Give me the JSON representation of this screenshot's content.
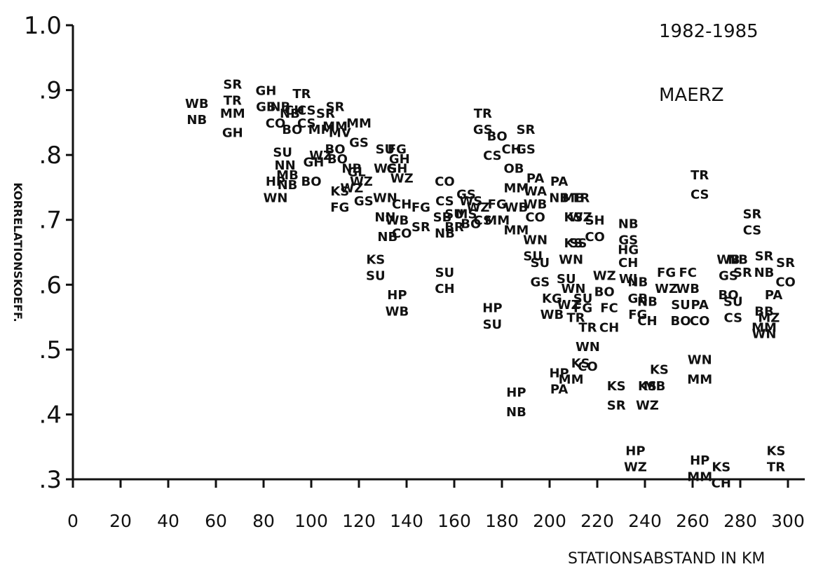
{
  "chart_data": {
    "type": "scatter",
    "title": "",
    "annotations": [
      "1982-1985",
      "MAERZ"
    ],
    "xlabel": "STATIONSABSTAND IN KM",
    "ylabel": "KORRELATIONSKOEFF.",
    "xlim": [
      0,
      300
    ],
    "ylim": [
      0.3,
      1.0
    ],
    "xticks": [
      0,
      20,
      40,
      60,
      80,
      100,
      120,
      140,
      160,
      180,
      200,
      220,
      240,
      260,
      280,
      300
    ],
    "yticks": [
      {
        "value": 0.3,
        "label": ".3"
      },
      {
        "value": 0.4,
        "label": ".4"
      },
      {
        "value": 0.5,
        "label": ".5"
      },
      {
        "value": 0.6,
        "label": ".6"
      },
      {
        "value": 0.7,
        "label": ".7"
      },
      {
        "value": 0.8,
        "label": ".8"
      },
      {
        "value": 0.9,
        "label": ".9"
      },
      {
        "value": 1.0,
        "label": "1.0"
      }
    ],
    "grid": false,
    "points": [
      {
        "x": 52,
        "y": 0.88,
        "label": "WB"
      },
      {
        "x": 52,
        "y": 0.855,
        "label": "NB"
      },
      {
        "x": 67,
        "y": 0.91,
        "label": "SR"
      },
      {
        "x": 67,
        "y": 0.885,
        "label": "TR"
      },
      {
        "x": 67,
        "y": 0.865,
        "label": "MM"
      },
      {
        "x": 67,
        "y": 0.835,
        "label": "GH"
      },
      {
        "x": 81,
        "y": 0.9,
        "label": "GH"
      },
      {
        "x": 81,
        "y": 0.875,
        "label": "GB"
      },
      {
        "x": 85,
        "y": 0.85,
        "label": "CO"
      },
      {
        "x": 87,
        "y": 0.875,
        "label": "NB"
      },
      {
        "x": 91,
        "y": 0.865,
        "label": "NB"
      },
      {
        "x": 92,
        "y": 0.84,
        "label": "BO"
      },
      {
        "x": 93,
        "y": 0.87,
        "label": "CH"
      },
      {
        "x": 96,
        "y": 0.895,
        "label": "TR"
      },
      {
        "x": 98,
        "y": 0.87,
        "label": "CS"
      },
      {
        "x": 98,
        "y": 0.85,
        "label": "CS"
      },
      {
        "x": 104,
        "y": 0.84,
        "label": "MM"
      },
      {
        "x": 106,
        "y": 0.865,
        "label": "SR"
      },
      {
        "x": 110,
        "y": 0.875,
        "label": "SR"
      },
      {
        "x": 110,
        "y": 0.845,
        "label": "MM"
      },
      {
        "x": 112,
        "y": 0.835,
        "label": "MV"
      },
      {
        "x": 110,
        "y": 0.81,
        "label": "BO"
      },
      {
        "x": 111,
        "y": 0.795,
        "label": "BO"
      },
      {
        "x": 120,
        "y": 0.85,
        "label": "MM"
      },
      {
        "x": 120,
        "y": 0.82,
        "label": "GS"
      },
      {
        "x": 88,
        "y": 0.805,
        "label": "SU"
      },
      {
        "x": 89,
        "y": 0.785,
        "label": "NN"
      },
      {
        "x": 90,
        "y": 0.77,
        "label": "MB"
      },
      {
        "x": 90,
        "y": 0.755,
        "label": "NB"
      },
      {
        "x": 85,
        "y": 0.76,
        "label": "HP"
      },
      {
        "x": 85,
        "y": 0.735,
        "label": "WN"
      },
      {
        "x": 101,
        "y": 0.79,
        "label": "GH"
      },
      {
        "x": 104,
        "y": 0.8,
        "label": "WZ"
      },
      {
        "x": 100,
        "y": 0.76,
        "label": "BO"
      },
      {
        "x": 112,
        "y": 0.745,
        "label": "KS"
      },
      {
        "x": 112,
        "y": 0.72,
        "label": "FG"
      },
      {
        "x": 117,
        "y": 0.78,
        "label": "NB"
      },
      {
        "x": 119,
        "y": 0.775,
        "label": "GL"
      },
      {
        "x": 121,
        "y": 0.76,
        "label": "WZ"
      },
      {
        "x": 117,
        "y": 0.75,
        "label": "WZ"
      },
      {
        "x": 122,
        "y": 0.73,
        "label": "GS"
      },
      {
        "x": 131,
        "y": 0.81,
        "label": "SU"
      },
      {
        "x": 136,
        "y": 0.81,
        "label": "FG"
      },
      {
        "x": 137,
        "y": 0.795,
        "label": "GH"
      },
      {
        "x": 131,
        "y": 0.78,
        "label": "WS"
      },
      {
        "x": 136,
        "y": 0.78,
        "label": "GH"
      },
      {
        "x": 138,
        "y": 0.765,
        "label": "WZ"
      },
      {
        "x": 131,
        "y": 0.735,
        "label": "WN"
      },
      {
        "x": 131,
        "y": 0.705,
        "label": "NN"
      },
      {
        "x": 136,
        "y": 0.7,
        "label": "WB"
      },
      {
        "x": 132,
        "y": 0.675,
        "label": "NB"
      },
      {
        "x": 138,
        "y": 0.725,
        "label": "CH"
      },
      {
        "x": 138,
        "y": 0.68,
        "label": "CO"
      },
      {
        "x": 146,
        "y": 0.72,
        "label": "FG"
      },
      {
        "x": 146,
        "y": 0.69,
        "label": "SR"
      },
      {
        "x": 127,
        "y": 0.64,
        "label": "KS"
      },
      {
        "x": 127,
        "y": 0.615,
        "label": "SU"
      },
      {
        "x": 136,
        "y": 0.585,
        "label": "HP"
      },
      {
        "x": 136,
        "y": 0.56,
        "label": "WB"
      },
      {
        "x": 156,
        "y": 0.76,
        "label": "CO"
      },
      {
        "x": 156,
        "y": 0.73,
        "label": "CS"
      },
      {
        "x": 155,
        "y": 0.705,
        "label": "SB"
      },
      {
        "x": 160,
        "y": 0.71,
        "label": "SU"
      },
      {
        "x": 156,
        "y": 0.68,
        "label": "NB"
      },
      {
        "x": 160,
        "y": 0.69,
        "label": "BR"
      },
      {
        "x": 165,
        "y": 0.74,
        "label": "GS"
      },
      {
        "x": 167,
        "y": 0.73,
        "label": "WS"
      },
      {
        "x": 165,
        "y": 0.71,
        "label": "MS"
      },
      {
        "x": 167,
        "y": 0.695,
        "label": "BO"
      },
      {
        "x": 170,
        "y": 0.72,
        "label": "WZ"
      },
      {
        "x": 172,
        "y": 0.7,
        "label": "CS"
      },
      {
        "x": 178,
        "y": 0.725,
        "label": "FG"
      },
      {
        "x": 178,
        "y": 0.7,
        "label": "MM"
      },
      {
        "x": 156,
        "y": 0.62,
        "label": "SU"
      },
      {
        "x": 156,
        "y": 0.595,
        "label": "CH"
      },
      {
        "x": 176,
        "y": 0.565,
        "label": "HP"
      },
      {
        "x": 176,
        "y": 0.54,
        "label": "SU"
      },
      {
        "x": 172,
        "y": 0.865,
        "label": "TR"
      },
      {
        "x": 172,
        "y": 0.84,
        "label": "GS"
      },
      {
        "x": 178,
        "y": 0.83,
        "label": "BO"
      },
      {
        "x": 176,
        "y": 0.8,
        "label": "CS"
      },
      {
        "x": 184,
        "y": 0.81,
        "label": "CH"
      },
      {
        "x": 185,
        "y": 0.78,
        "label": "OB"
      },
      {
        "x": 186,
        "y": 0.75,
        "label": "MM"
      },
      {
        "x": 186,
        "y": 0.72,
        "label": "WB"
      },
      {
        "x": 186,
        "y": 0.685,
        "label": "MM"
      },
      {
        "x": 190,
        "y": 0.84,
        "label": "SR"
      },
      {
        "x": 190,
        "y": 0.81,
        "label": "GS"
      },
      {
        "x": 194,
        "y": 0.765,
        "label": "PA"
      },
      {
        "x": 194,
        "y": 0.745,
        "label": "WA"
      },
      {
        "x": 194,
        "y": 0.725,
        "label": "WB"
      },
      {
        "x": 194,
        "y": 0.705,
        "label": "CO"
      },
      {
        "x": 194,
        "y": 0.67,
        "label": "WN"
      },
      {
        "x": 193,
        "y": 0.645,
        "label": "SU"
      },
      {
        "x": 196,
        "y": 0.635,
        "label": "SU"
      },
      {
        "x": 196,
        "y": 0.605,
        "label": "GS"
      },
      {
        "x": 201,
        "y": 0.58,
        "label": "KG"
      },
      {
        "x": 201,
        "y": 0.555,
        "label": "WB"
      },
      {
        "x": 204,
        "y": 0.76,
        "label": "PA"
      },
      {
        "x": 204,
        "y": 0.735,
        "label": "NB"
      },
      {
        "x": 210,
        "y": 0.735,
        "label": "MB"
      },
      {
        "x": 213,
        "y": 0.735,
        "label": "TR"
      },
      {
        "x": 210,
        "y": 0.705,
        "label": "KS"
      },
      {
        "x": 213,
        "y": 0.705,
        "label": "WZ"
      },
      {
        "x": 210,
        "y": 0.665,
        "label": "KS"
      },
      {
        "x": 212,
        "y": 0.665,
        "label": "SS"
      },
      {
        "x": 209,
        "y": 0.64,
        "label": "WN"
      },
      {
        "x": 207,
        "y": 0.61,
        "label": "SU"
      },
      {
        "x": 210,
        "y": 0.595,
        "label": "WN"
      },
      {
        "x": 208,
        "y": 0.57,
        "label": "WZ"
      },
      {
        "x": 214,
        "y": 0.58,
        "label": "SU"
      },
      {
        "x": 214,
        "y": 0.565,
        "label": "FG"
      },
      {
        "x": 211,
        "y": 0.55,
        "label": "TR"
      },
      {
        "x": 216,
        "y": 0.535,
        "label": "TR"
      },
      {
        "x": 219,
        "y": 0.7,
        "label": "SH"
      },
      {
        "x": 219,
        "y": 0.675,
        "label": "CO"
      },
      {
        "x": 223,
        "y": 0.615,
        "label": "WZ"
      },
      {
        "x": 223,
        "y": 0.59,
        "label": "BO"
      },
      {
        "x": 225,
        "y": 0.565,
        "label": "FC"
      },
      {
        "x": 225,
        "y": 0.535,
        "label": "CH"
      },
      {
        "x": 216,
        "y": 0.505,
        "label": "WN"
      },
      {
        "x": 213,
        "y": 0.48,
        "label": "KS"
      },
      {
        "x": 216,
        "y": 0.475,
        "label": "CO"
      },
      {
        "x": 204,
        "y": 0.465,
        "label": "HP"
      },
      {
        "x": 204,
        "y": 0.44,
        "label": "PA"
      },
      {
        "x": 209,
        "y": 0.455,
        "label": "MM"
      },
      {
        "x": 186,
        "y": 0.435,
        "label": "HP"
      },
      {
        "x": 186,
        "y": 0.405,
        "label": "NB"
      },
      {
        "x": 228,
        "y": 0.445,
        "label": "KS"
      },
      {
        "x": 228,
        "y": 0.415,
        "label": "SR"
      },
      {
        "x": 233,
        "y": 0.695,
        "label": "NB"
      },
      {
        "x": 233,
        "y": 0.67,
        "label": "GS"
      },
      {
        "x": 233,
        "y": 0.655,
        "label": "HG"
      },
      {
        "x": 233,
        "y": 0.635,
        "label": "CH"
      },
      {
        "x": 233,
        "y": 0.61,
        "label": "WJ"
      },
      {
        "x": 237,
        "y": 0.605,
        "label": "NB"
      },
      {
        "x": 237,
        "y": 0.58,
        "label": "GB"
      },
      {
        "x": 241,
        "y": 0.575,
        "label": "NB"
      },
      {
        "x": 237,
        "y": 0.555,
        "label": "FG"
      },
      {
        "x": 241,
        "y": 0.545,
        "label": "CH"
      },
      {
        "x": 249,
        "y": 0.62,
        "label": "FG"
      },
      {
        "x": 249,
        "y": 0.595,
        "label": "WZ"
      },
      {
        "x": 258,
        "y": 0.62,
        "label": "FC"
      },
      {
        "x": 258,
        "y": 0.595,
        "label": "WB"
      },
      {
        "x": 255,
        "y": 0.57,
        "label": "SU"
      },
      {
        "x": 255,
        "y": 0.545,
        "label": "BO"
      },
      {
        "x": 263,
        "y": 0.57,
        "label": "PA"
      },
      {
        "x": 263,
        "y": 0.545,
        "label": "CO"
      },
      {
        "x": 263,
        "y": 0.77,
        "label": "TR"
      },
      {
        "x": 263,
        "y": 0.74,
        "label": "CS"
      },
      {
        "x": 263,
        "y": 0.485,
        "label": "WN"
      },
      {
        "x": 263,
        "y": 0.455,
        "label": "MM"
      },
      {
        "x": 241,
        "y": 0.445,
        "label": "KS"
      },
      {
        "x": 244,
        "y": 0.445,
        "label": "MB"
      },
      {
        "x": 246,
        "y": 0.47,
        "label": "KS"
      },
      {
        "x": 241,
        "y": 0.415,
        "label": "WZ"
      },
      {
        "x": 236,
        "y": 0.345,
        "label": "HP"
      },
      {
        "x": 236,
        "y": 0.32,
        "label": "WZ"
      },
      {
        "x": 263,
        "y": 0.33,
        "label": "HP"
      },
      {
        "x": 263,
        "y": 0.305,
        "label": "MM"
      },
      {
        "x": 272,
        "y": 0.32,
        "label": "KS"
      },
      {
        "x": 272,
        "y": 0.295,
        "label": "CH"
      },
      {
        "x": 275,
        "y": 0.64,
        "label": "WB"
      },
      {
        "x": 279,
        "y": 0.64,
        "label": "NB"
      },
      {
        "x": 275,
        "y": 0.615,
        "label": "GS"
      },
      {
        "x": 281,
        "y": 0.62,
        "label": "SR"
      },
      {
        "x": 275,
        "y": 0.585,
        "label": "BO"
      },
      {
        "x": 277,
        "y": 0.575,
        "label": "SU"
      },
      {
        "x": 277,
        "y": 0.55,
        "label": "CS"
      },
      {
        "x": 285,
        "y": 0.71,
        "label": "SR"
      },
      {
        "x": 285,
        "y": 0.685,
        "label": "CS"
      },
      {
        "x": 290,
        "y": 0.645,
        "label": "SR"
      },
      {
        "x": 290,
        "y": 0.62,
        "label": "NB"
      },
      {
        "x": 299,
        "y": 0.635,
        "label": "SR"
      },
      {
        "x": 299,
        "y": 0.605,
        "label": "CO"
      },
      {
        "x": 294,
        "y": 0.585,
        "label": "PA"
      },
      {
        "x": 290,
        "y": 0.56,
        "label": "BB"
      },
      {
        "x": 292,
        "y": 0.55,
        "label": "MZ"
      },
      {
        "x": 290,
        "y": 0.535,
        "label": "MM"
      },
      {
        "x": 290,
        "y": 0.525,
        "label": "WN"
      },
      {
        "x": 295,
        "y": 0.345,
        "label": "KS"
      },
      {
        "x": 295,
        "y": 0.32,
        "label": "TR"
      }
    ]
  }
}
